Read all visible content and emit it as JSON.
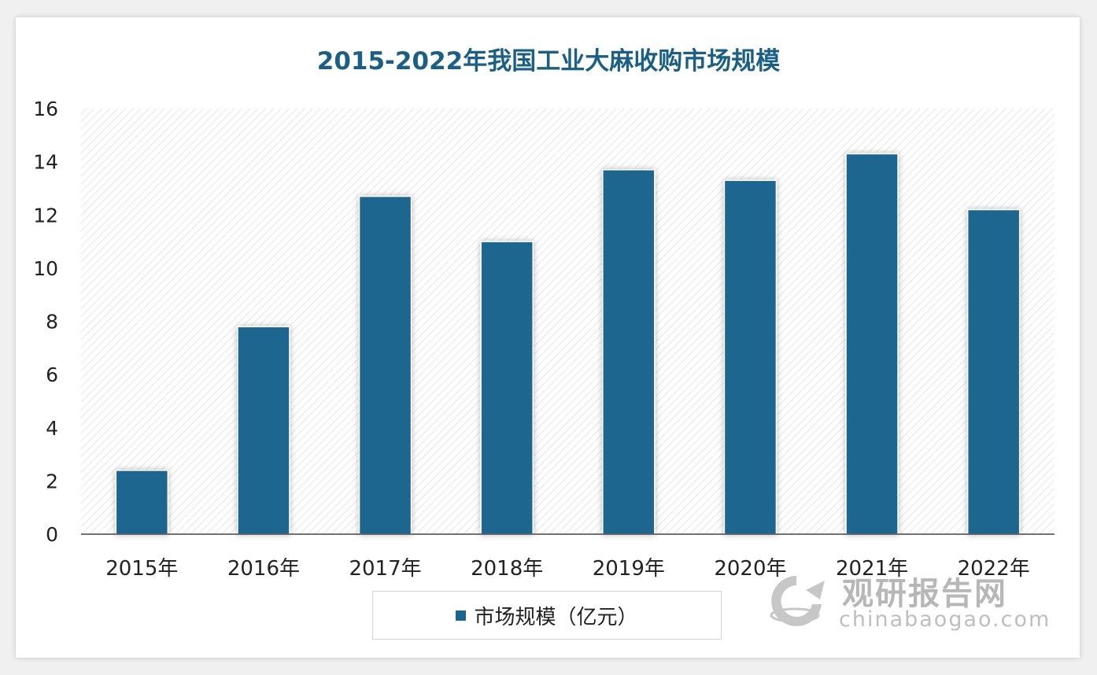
{
  "chart_data": {
    "type": "bar",
    "title": "2015-2022年我国工业大麻收购市场规模",
    "categories": [
      "2015年",
      "2016年",
      "2017年",
      "2018年",
      "2019年",
      "2020年",
      "2021年",
      "2022年"
    ],
    "series": [
      {
        "name": "市场规模（亿元）",
        "values": [
          2.4,
          7.8,
          12.7,
          11.0,
          13.7,
          13.3,
          14.3,
          12.2
        ]
      }
    ],
    "ylim": [
      0,
      16
    ],
    "yticks": [
      "0",
      "2",
      "4",
      "6",
      "8",
      "10",
      "12",
      "14",
      "16"
    ],
    "grid": false,
    "legend_position": "bottom",
    "bar_color": "#1a6690",
    "title_color": "#1a5f86"
  },
  "watermark": {
    "cn": "观研报告网",
    "en": "chinabaogao.com"
  }
}
